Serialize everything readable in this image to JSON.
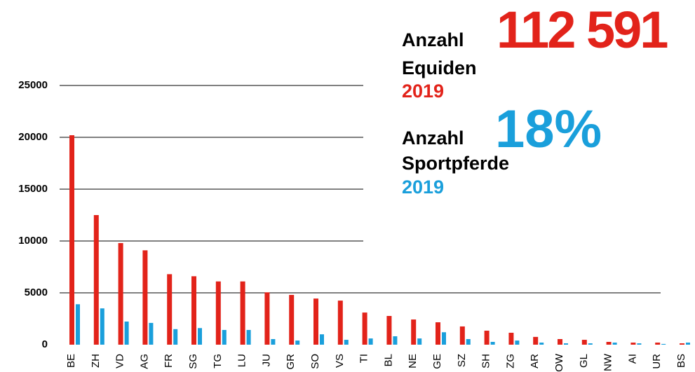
{
  "chart_data": {
    "type": "bar",
    "categories": [
      "BE",
      "ZH",
      "VD",
      "AG",
      "FR",
      "SG",
      "TG",
      "LU",
      "JU",
      "GR",
      "SO",
      "VS",
      "TI",
      "BL",
      "NE",
      "GE",
      "SZ",
      "SH",
      "ZG",
      "AR",
      "OW",
      "GL",
      "NW",
      "AI",
      "UR",
      "BS"
    ],
    "series": [
      {
        "color": "#e2231a",
        "values": [
          20200,
          12500,
          9800,
          9100,
          6800,
          6600,
          6100,
          6100,
          5050,
          4800,
          4450,
          4250,
          3100,
          2770,
          2430,
          2160,
          1760,
          1350,
          1150,
          750,
          540,
          470,
          270,
          200,
          200,
          130
        ]
      },
      {
        "color": "#1a9fdb",
        "values": [
          3900,
          3500,
          2230,
          2100,
          1500,
          1600,
          1420,
          1420,
          540,
          400,
          1000,
          470,
          600,
          810,
          600,
          1200,
          540,
          270,
          400,
          200,
          130,
          130,
          200,
          130,
          70,
          200
        ]
      }
    ],
    "ylim": [
      0,
      25000
    ],
    "yticks": [
      0,
      5000,
      10000,
      15000,
      20000,
      25000
    ],
    "grid": true,
    "annotations": {
      "equiden": {
        "label1": "Anzahl",
        "label2": "Equiden",
        "number": "112 591",
        "year": "2019"
      },
      "sport": {
        "label1": "Anzahl",
        "label2": "Sportpferde",
        "number": "18%",
        "year": "2019"
      }
    }
  }
}
